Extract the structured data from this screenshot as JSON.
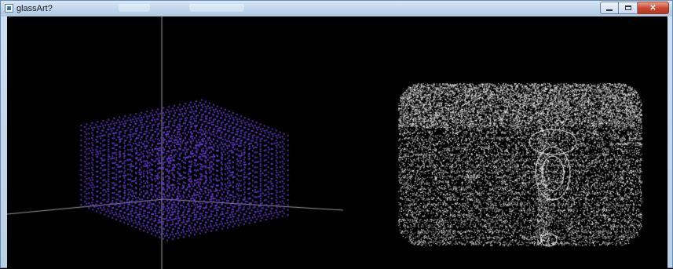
{
  "window": {
    "title": "glassArt?",
    "icon": "window-app-icon",
    "controls": {
      "minimize": "minimize-icon",
      "maximize": "maximize-icon",
      "close_glyph": "✕"
    }
  },
  "viewport": {
    "background": "#000000",
    "left_model": {
      "kind": "voxel-point-grid",
      "color": "#6a3fd6",
      "axes_color": "#9a9a9a"
    },
    "right_model": {
      "kind": "point-cloud-surface",
      "color": "#ffffff"
    }
  }
}
